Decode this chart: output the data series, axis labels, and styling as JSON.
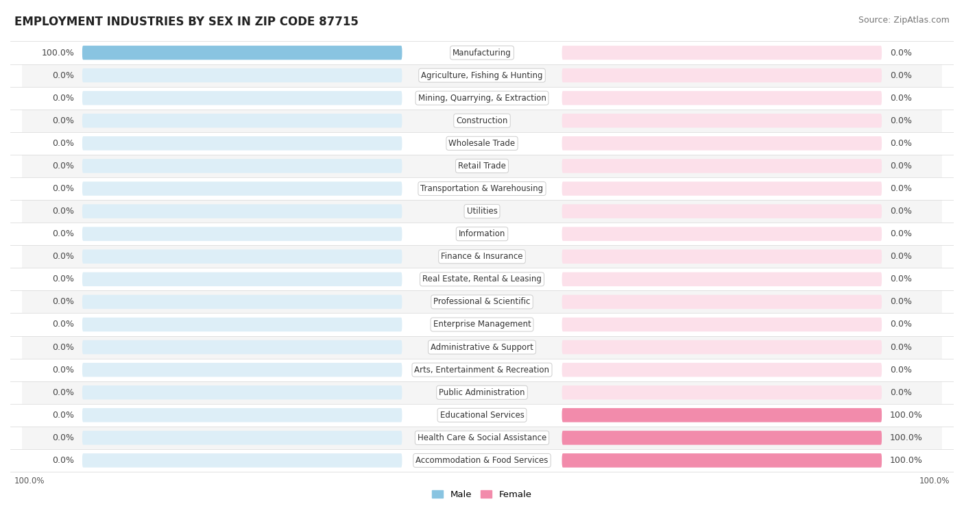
{
  "title": "EMPLOYMENT INDUSTRIES BY SEX IN ZIP CODE 87715",
  "source": "Source: ZipAtlas.com",
  "categories": [
    "Manufacturing",
    "Agriculture, Fishing & Hunting",
    "Mining, Quarrying, & Extraction",
    "Construction",
    "Wholesale Trade",
    "Retail Trade",
    "Transportation & Warehousing",
    "Utilities",
    "Information",
    "Finance & Insurance",
    "Real Estate, Rental & Leasing",
    "Professional & Scientific",
    "Enterprise Management",
    "Administrative & Support",
    "Arts, Entertainment & Recreation",
    "Public Administration",
    "Educational Services",
    "Health Care & Social Assistance",
    "Accommodation & Food Services"
  ],
  "male_values": [
    100.0,
    0.0,
    0.0,
    0.0,
    0.0,
    0.0,
    0.0,
    0.0,
    0.0,
    0.0,
    0.0,
    0.0,
    0.0,
    0.0,
    0.0,
    0.0,
    0.0,
    0.0,
    0.0
  ],
  "female_values": [
    0.0,
    0.0,
    0.0,
    0.0,
    0.0,
    0.0,
    0.0,
    0.0,
    0.0,
    0.0,
    0.0,
    0.0,
    0.0,
    0.0,
    0.0,
    0.0,
    100.0,
    100.0,
    100.0
  ],
  "male_color": "#89c4e1",
  "female_color": "#f28bab",
  "male_stub_color": "#c5dff0",
  "female_stub_color": "#f5c0d2",
  "row_odd_color": "#f5f5f5",
  "row_even_color": "#ffffff",
  "bar_bg_left_color": "#ddeef7",
  "bar_bg_right_color": "#fce0ea",
  "title_fontsize": 12,
  "source_fontsize": 9,
  "label_fontsize": 9,
  "category_fontsize": 8.5,
  "bar_height": 0.62,
  "legend_male": "Male",
  "legend_female": "Female"
}
